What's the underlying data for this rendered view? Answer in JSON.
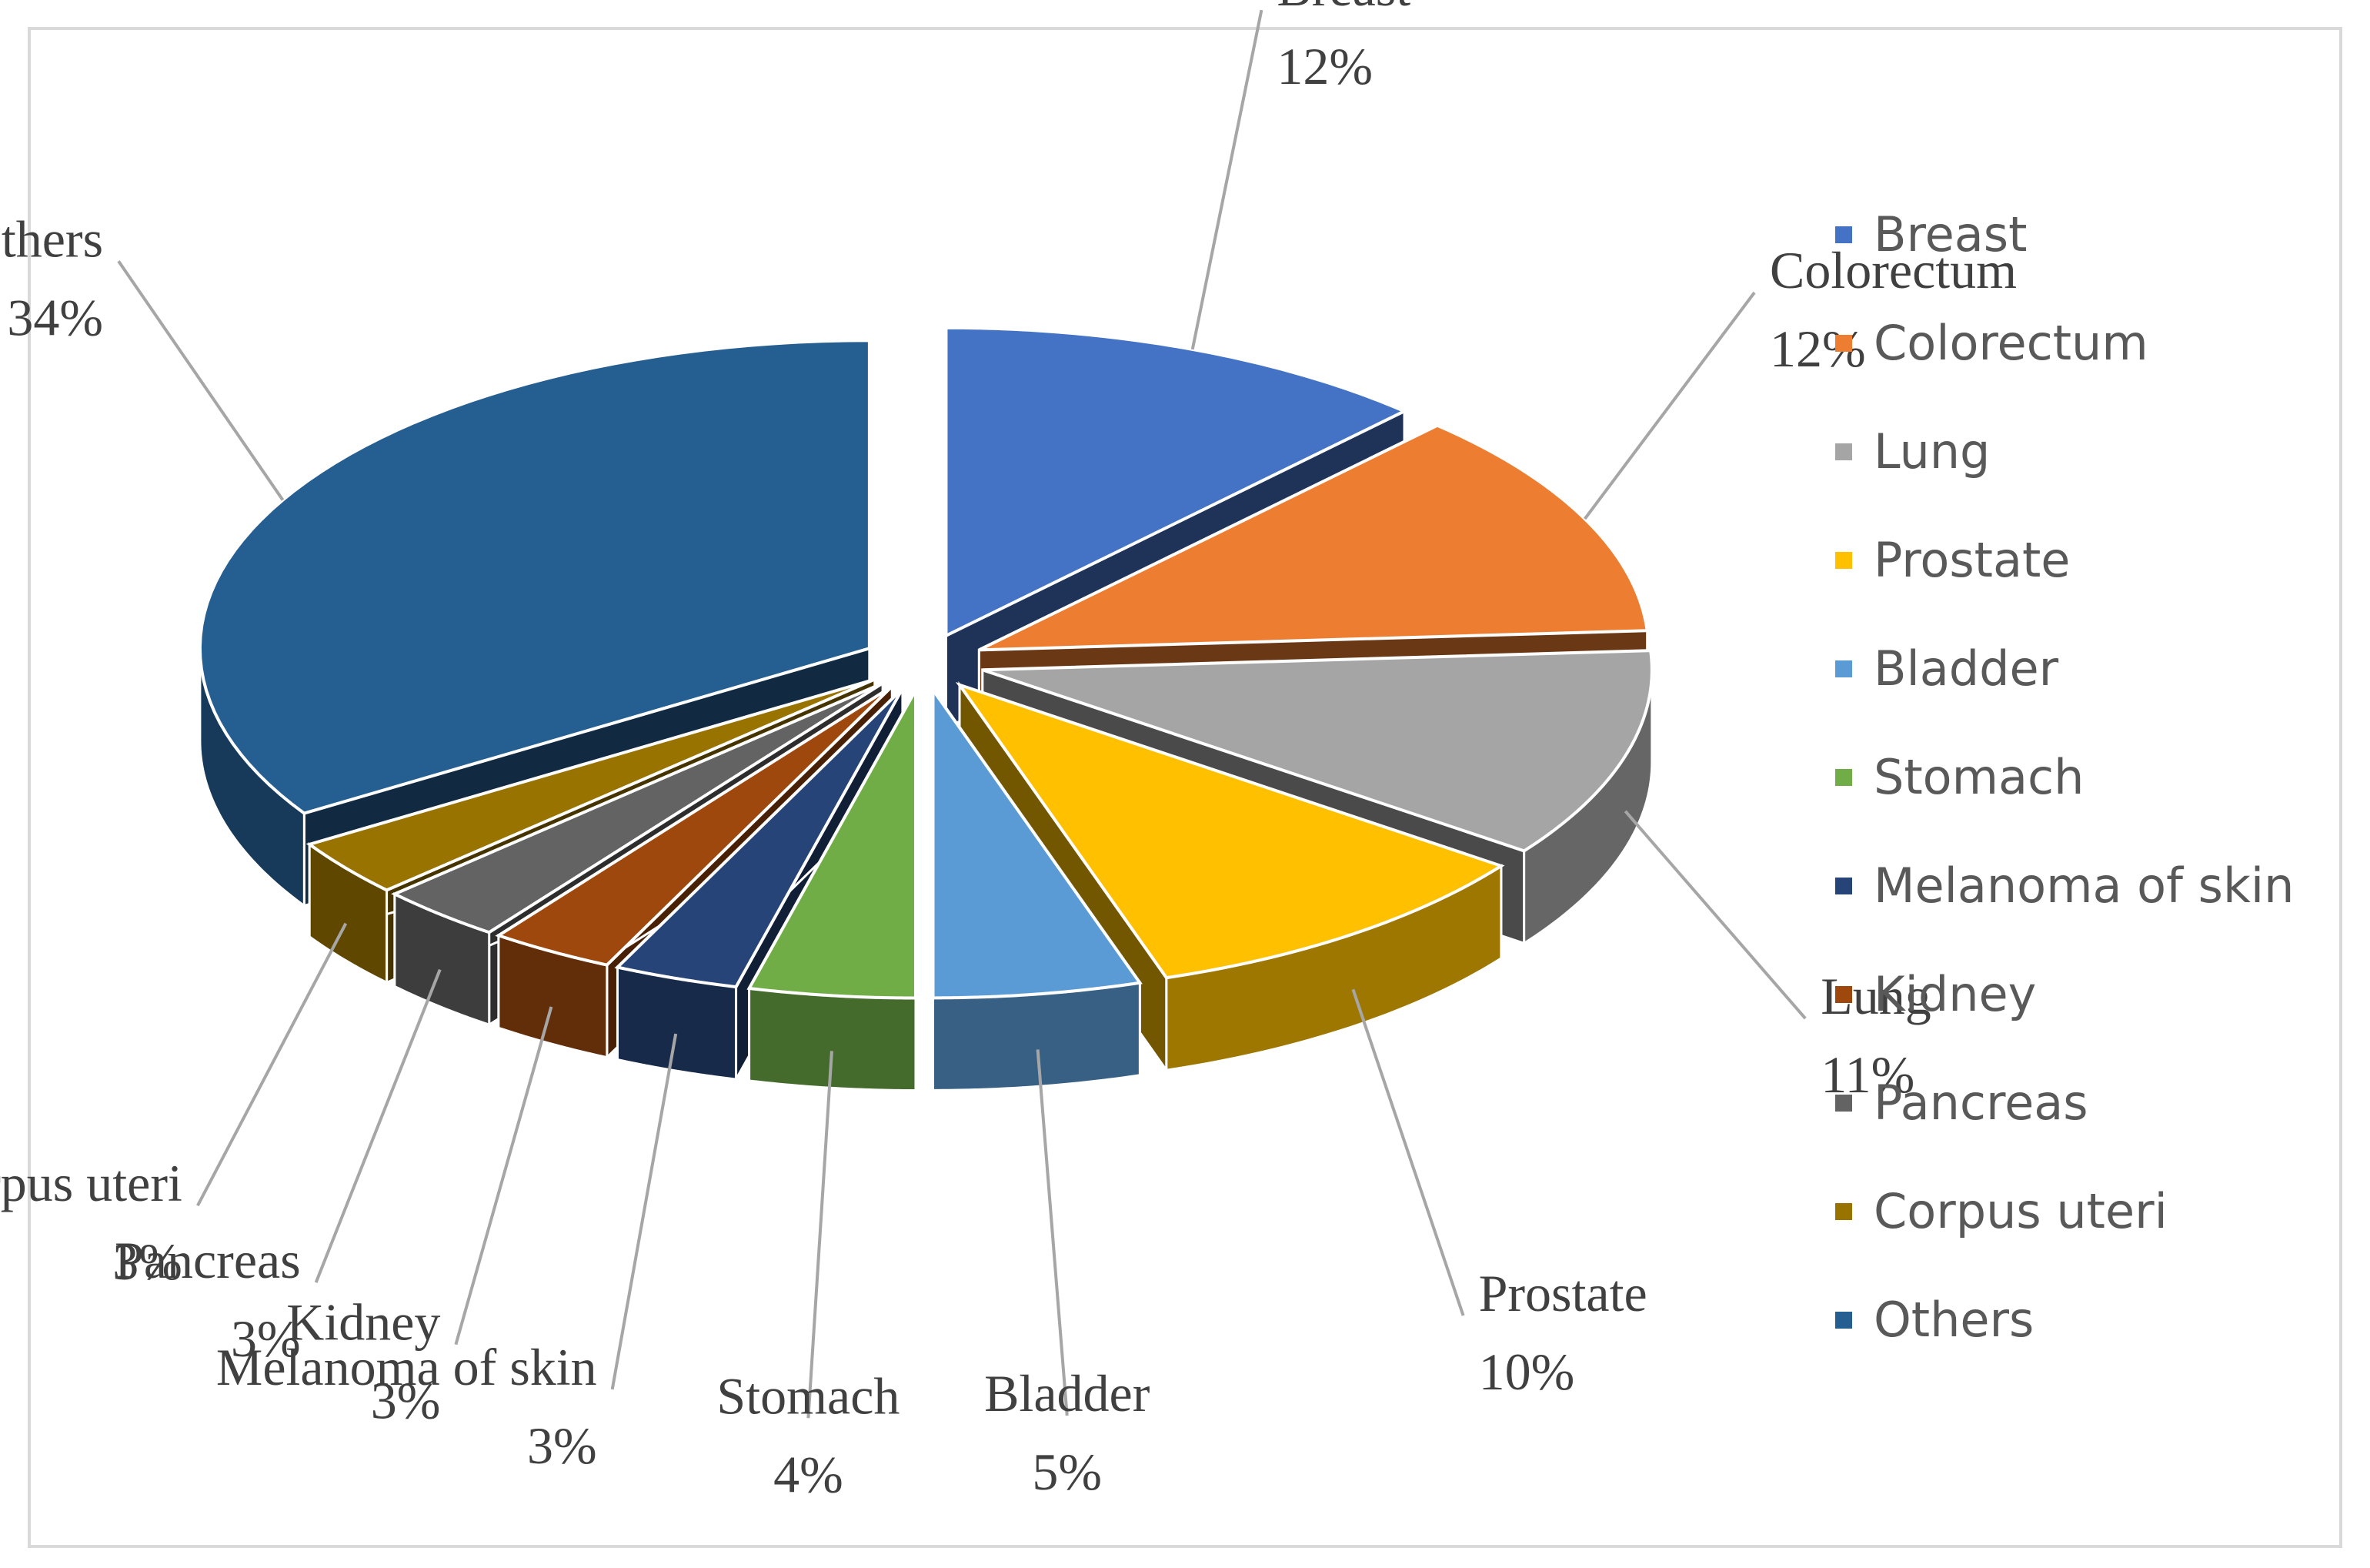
{
  "chart_data": {
    "type": "pie",
    "style": "exploded 3d pie",
    "legend_position": "right",
    "categories": [
      "Breast",
      "Colorectum",
      "Lung",
      "Prostate",
      "Bladder",
      "Stomach",
      "Melanoma of skin",
      "Kidney",
      "Pancreas",
      "Corpus uteri",
      "Others"
    ],
    "values": [
      12,
      12,
      11,
      10,
      5,
      4,
      3,
      3,
      3,
      3,
      34
    ],
    "value_labels": [
      "12%",
      "12%",
      "11%",
      "10%",
      "5%",
      "4%",
      "3%",
      "3%",
      "3%",
      "3%",
      "34%"
    ],
    "colors": [
      "#4472c4",
      "#ed7d31",
      "#a5a5a5",
      "#ffc000",
      "#5b9bd5",
      "#70ad47",
      "#264478",
      "#9e480e",
      "#636363",
      "#997300",
      "#255e91"
    ]
  }
}
